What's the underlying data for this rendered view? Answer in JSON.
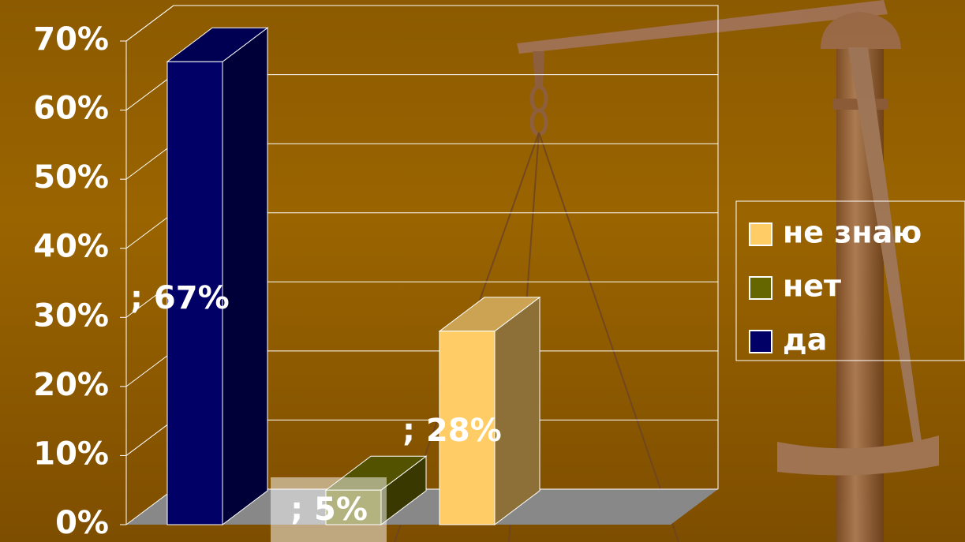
{
  "chart_data": {
    "type": "bar3d",
    "categories": [
      null
    ],
    "series": [
      {
        "name": "да",
        "color": "#000066",
        "values": [
          67
        ],
        "value_labels": [
          "; 67%"
        ]
      },
      {
        "name": "нет",
        "color": "#666600",
        "values": [
          5
        ],
        "value_labels": [
          "; 5%"
        ]
      },
      {
        "name": "не знаю",
        "color": "#ffcc66",
        "values": [
          28
        ],
        "value_labels": [
          "; 28%"
        ]
      }
    ],
    "ylim": [
      0,
      70
    ],
    "yticks": [
      {
        "value": 0,
        "label": "0%"
      },
      {
        "value": 10,
        "label": "10%"
      },
      {
        "value": 20,
        "label": "20%"
      },
      {
        "value": 30,
        "label": "30%"
      },
      {
        "value": 40,
        "label": "40%"
      },
      {
        "value": 50,
        "label": "50%"
      },
      {
        "value": 60,
        "label": "60%"
      },
      {
        "value": 70,
        "label": "70%"
      }
    ],
    "grid": true,
    "legend": "right"
  }
}
